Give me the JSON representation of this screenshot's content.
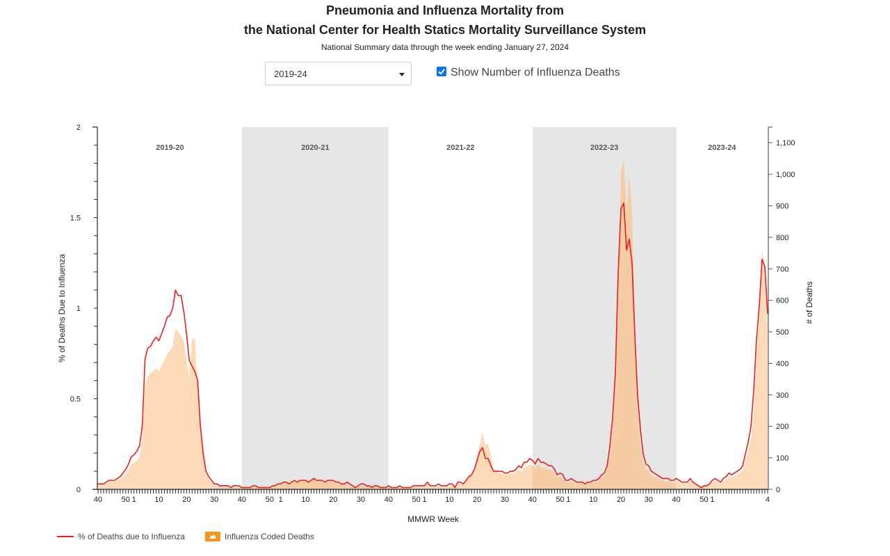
{
  "header": {
    "title_line1": "Pneumonia and Influenza Mortality from",
    "title_line2": "the National Center for Health Statics Mortality Surveillance System",
    "subtitle": "National Summary data through the week ending January 27, 2024"
  },
  "controls": {
    "season_select_value": "2019-24",
    "show_deaths_checkbox_label": "Show Number of Influenza Deaths",
    "show_deaths_checked": true
  },
  "legend": {
    "line_label": "% of Deaths due to Influenza",
    "area_label": "Influenza Coded Deaths"
  },
  "colors": {
    "line": "#ee1c1c",
    "area": "#fdd5ab",
    "area_overlap": "#f2c49a",
    "shade": "#e6e6e6",
    "legend_area": "#f7941d",
    "checkbox": "#0a74e8"
  },
  "chart_data": {
    "type": "line",
    "title": "Pneumonia and Influenza Mortality from the National Center for Health Statics Mortality Surveillance System",
    "subtitle": "National Summary data through the week ending January 27, 2024",
    "xlabel": "MMWR Week",
    "ylabel": "% of Deaths Due to Influenza",
    "y2label": "# of Deaths",
    "ylim": [
      0,
      2
    ],
    "y2lim": [
      0,
      1150
    ],
    "yticks": [
      "0",
      "0.5",
      "1",
      "1.5",
      "2"
    ],
    "y2ticks": [
      "0",
      "100",
      "200",
      "300",
      "400",
      "500",
      "600",
      "700",
      "800",
      "900",
      "1,000",
      "1,100"
    ],
    "xtick_labels": [
      "40",
      "50",
      "1",
      "10",
      "20",
      "30",
      "40",
      "50",
      "1",
      "10",
      "20",
      "30",
      "40",
      "50",
      "1",
      "10",
      "20",
      "30",
      "40",
      "50",
      "1",
      "10",
      "20",
      "30",
      "40",
      "50",
      "1",
      "4"
    ],
    "seasons": [
      {
        "label": "2019-20",
        "shaded": false
      },
      {
        "label": "2020-21",
        "shaded": true
      },
      {
        "label": "2021-22",
        "shaded": false
      },
      {
        "label": "2022-23",
        "shaded": true
      },
      {
        "label": "2023-24",
        "shaded": false
      }
    ],
    "legend_position": "bottom-left",
    "grid": false,
    "series": [
      {
        "name": "% of Deaths due to Influenza",
        "axis": "left",
        "type": "line",
        "values": [
          0.03,
          0.03,
          0.03,
          0.04,
          0.05,
          0.05,
          0.05,
          0.06,
          0.07,
          0.09,
          0.11,
          0.14,
          0.18,
          0.19,
          0.21,
          0.24,
          0.35,
          0.72,
          0.78,
          0.79,
          0.82,
          0.84,
          0.82,
          0.86,
          0.9,
          0.95,
          0.96,
          1.0,
          1.1,
          1.07,
          1.07,
          0.98,
          0.86,
          0.71,
          0.68,
          0.65,
          0.6,
          0.35,
          0.2,
          0.1,
          0.07,
          0.05,
          0.03,
          0.03,
          0.02,
          0.02,
          0.02,
          0.02,
          0.01,
          0.02,
          0.02,
          0.02,
          0.01,
          0.01,
          0.01,
          0.01,
          0.02,
          0.02,
          0.01,
          0.01,
          0.01,
          0.01,
          0.01,
          0.02,
          0.02,
          0.03,
          0.03,
          0.04,
          0.04,
          0.03,
          0.04,
          0.05,
          0.04,
          0.05,
          0.05,
          0.05,
          0.04,
          0.05,
          0.06,
          0.05,
          0.05,
          0.05,
          0.04,
          0.05,
          0.05,
          0.05,
          0.04,
          0.04,
          0.03,
          0.03,
          0.04,
          0.03,
          0.02,
          0.01,
          0.02,
          0.03,
          0.03,
          0.02,
          0.02,
          0.01,
          0.02,
          0.02,
          0.01,
          0.01,
          0.01,
          0.02,
          0.01,
          0.01,
          0.01,
          0.02,
          0.01,
          0.01,
          0.01,
          0.01,
          0.02,
          0.02,
          0.02,
          0.02,
          0.02,
          0.04,
          0.02,
          0.02,
          0.02,
          0.03,
          0.02,
          0.02,
          0.02,
          0.03,
          0.03,
          0.01,
          0.04,
          0.04,
          0.03,
          0.05,
          0.07,
          0.08,
          0.11,
          0.16,
          0.21,
          0.23,
          0.17,
          0.17,
          0.13,
          0.1,
          0.1,
          0.1,
          0.1,
          0.09,
          0.09,
          0.1,
          0.1,
          0.11,
          0.13,
          0.12,
          0.15,
          0.15,
          0.17,
          0.16,
          0.14,
          0.17,
          0.15,
          0.15,
          0.14,
          0.13,
          0.13,
          0.11,
          0.08,
          0.09,
          0.08,
          0.05,
          0.05,
          0.06,
          0.05,
          0.04,
          0.04,
          0.04,
          0.03,
          0.04,
          0.04,
          0.05,
          0.05,
          0.06,
          0.08,
          0.09,
          0.13,
          0.24,
          0.4,
          0.65,
          1.2,
          1.55,
          1.58,
          1.32,
          1.38,
          1.25,
          0.85,
          0.52,
          0.33,
          0.2,
          0.14,
          0.13,
          0.1,
          0.09,
          0.08,
          0.07,
          0.06,
          0.06,
          0.06,
          0.05,
          0.05,
          0.06,
          0.05,
          0.04,
          0.04,
          0.04,
          0.06,
          0.04,
          0.03,
          0.02,
          0.01,
          0.02,
          0.02,
          0.03,
          0.05,
          0.06,
          0.05,
          0.04,
          0.06,
          0.07,
          0.09,
          0.08,
          0.09,
          0.1,
          0.11,
          0.13,
          0.2,
          0.26,
          0.35,
          0.55,
          0.83,
          1.02,
          1.27,
          1.23,
          0.97
        ]
      },
      {
        "name": "Influenza Coded Deaths",
        "axis": "right",
        "type": "area",
        "values": [
          15,
          15,
          15,
          18,
          22,
          25,
          25,
          28,
          32,
          40,
          50,
          62,
          80,
          85,
          92,
          105,
          155,
          330,
          360,
          370,
          375,
          385,
          375,
          395,
          410,
          430,
          440,
          455,
          510,
          500,
          485,
          470,
          410,
          360,
          480,
          475,
          330,
          195,
          110,
          50,
          30,
          20,
          14,
          12,
          10,
          10,
          10,
          8,
          7,
          8,
          8,
          8,
          7,
          6,
          6,
          6,
          8,
          8,
          6,
          5,
          5,
          6,
          6,
          8,
          10,
          12,
          14,
          18,
          20,
          18,
          22,
          25,
          24,
          28,
          30,
          30,
          26,
          30,
          35,
          28,
          30,
          28,
          24,
          26,
          26,
          24,
          20,
          18,
          15,
          14,
          16,
          12,
          10,
          6,
          8,
          12,
          12,
          10,
          10,
          6,
          8,
          8,
          6,
          5,
          5,
          8,
          6,
          5,
          6,
          8,
          6,
          6,
          5,
          5,
          8,
          8,
          8,
          8,
          8,
          18,
          8,
          8,
          8,
          10,
          8,
          8,
          8,
          12,
          14,
          6,
          18,
          18,
          16,
          25,
          40,
          42,
          60,
          110,
          145,
          180,
          140,
          145,
          110,
          55,
          55,
          52,
          50,
          50,
          48,
          50,
          50,
          55,
          62,
          58,
          70,
          72,
          80,
          76,
          68,
          80,
          70,
          70,
          66,
          62,
          62,
          52,
          38,
          40,
          36,
          22,
          22,
          26,
          22,
          18,
          18,
          18,
          14,
          18,
          20,
          22,
          24,
          28,
          38,
          45,
          62,
          110,
          190,
          310,
          600,
          1000,
          1050,
          875,
          1000,
          870,
          560,
          260,
          140,
          90,
          65,
          58,
          46,
          40,
          36,
          32,
          28,
          26,
          26,
          22,
          22,
          26,
          22,
          18,
          18,
          18,
          26,
          18,
          14,
          10,
          6,
          10,
          10,
          14,
          22,
          26,
          22,
          18,
          26,
          32,
          40,
          36,
          42,
          46,
          50,
          60,
          90,
          120,
          160,
          250,
          420,
          540,
          760,
          700,
          520
        ]
      }
    ]
  }
}
